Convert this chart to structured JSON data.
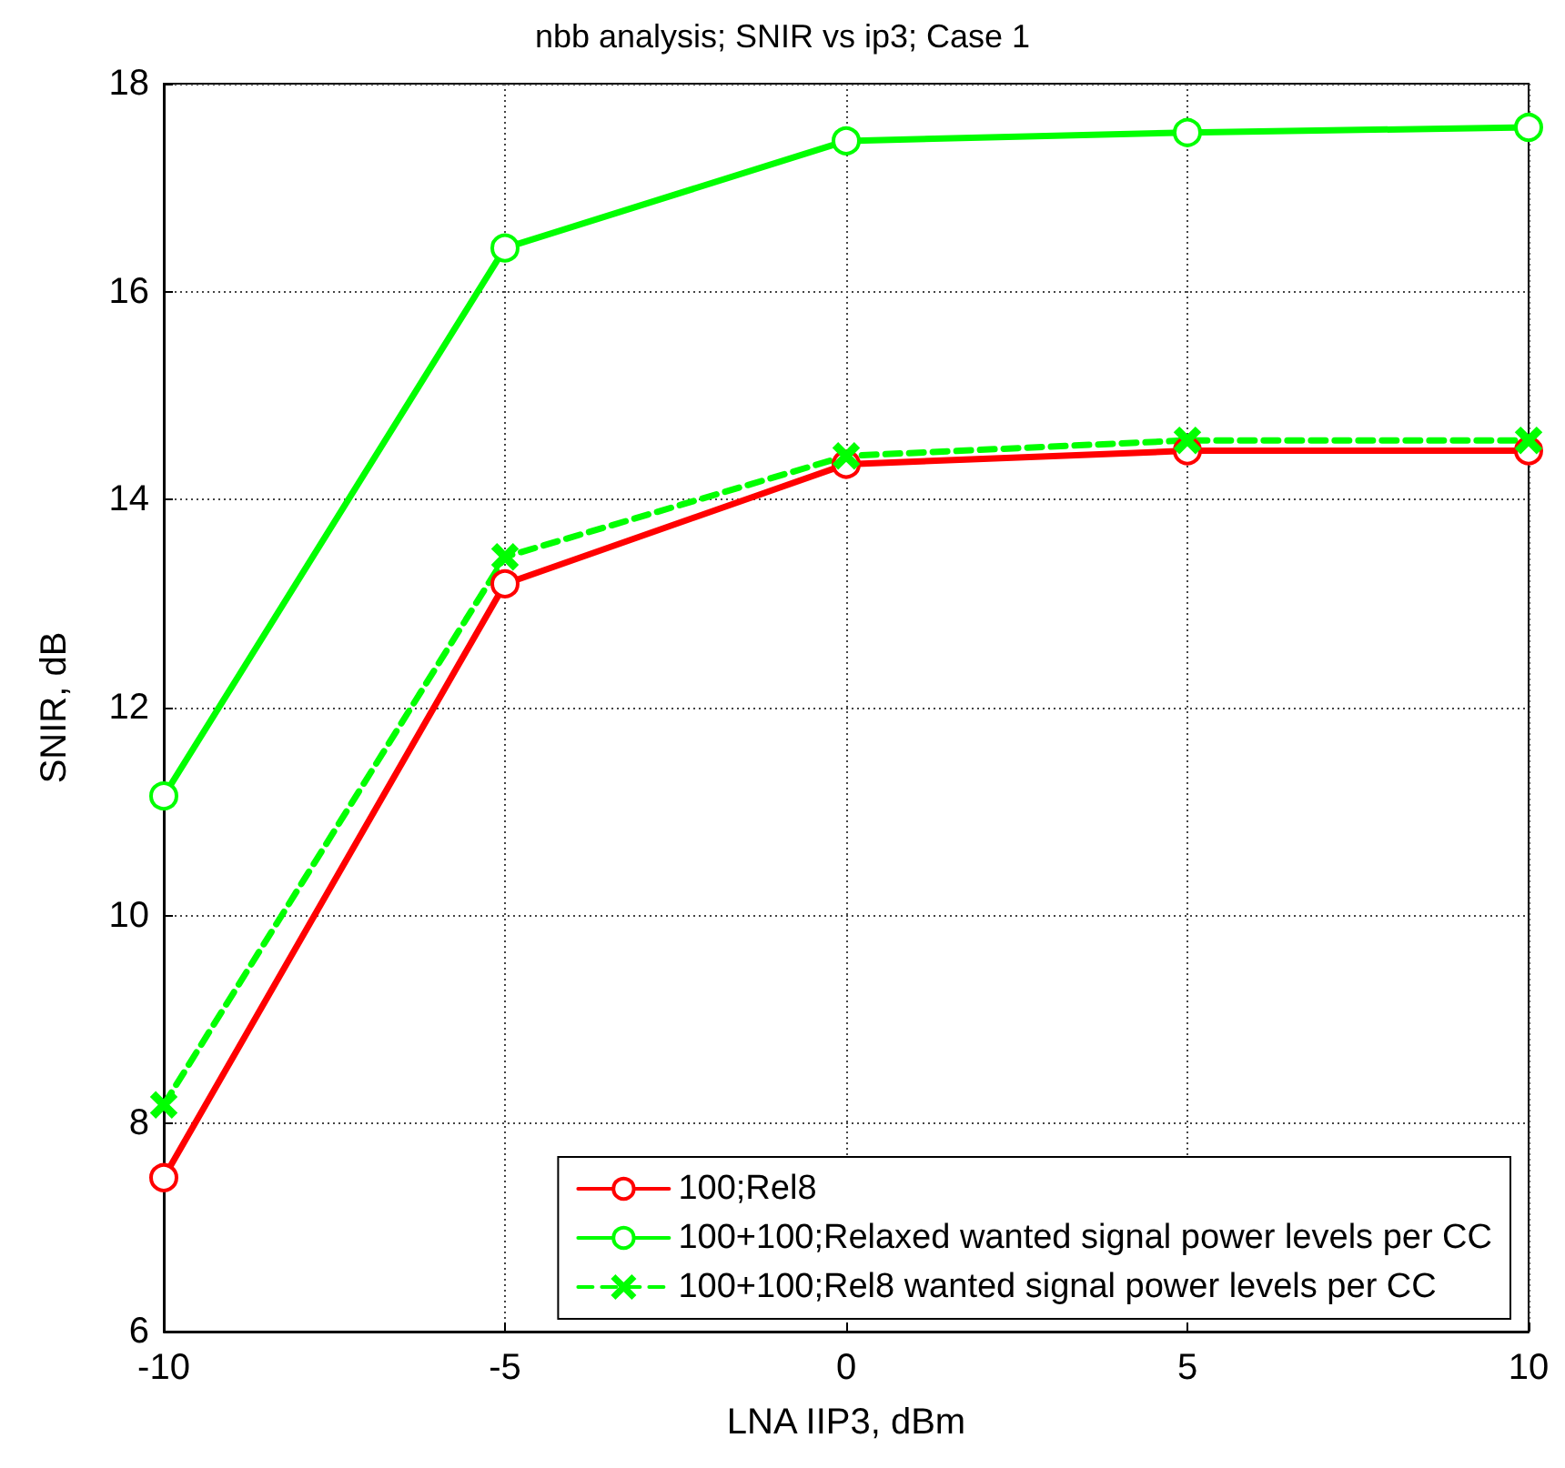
{
  "chart_data": {
    "type": "line",
    "title": "nbb analysis; SNIR vs ip3; Case 1",
    "xlabel": "LNA IIP3, dBm",
    "ylabel": "SNIR, dB",
    "x": [
      -10,
      -5,
      0,
      5,
      10
    ],
    "series": [
      {
        "name": "100;Rel8",
        "color": "#ff0000",
        "marker": "circle",
        "line_style": "solid",
        "values": [
          7.48,
          13.19,
          14.34,
          14.47,
          14.47
        ]
      },
      {
        "name": "100+100;Relaxed wanted signal power levels per CC",
        "color": "#00ff00",
        "marker": "circle",
        "line_style": "solid",
        "values": [
          11.15,
          16.42,
          17.45,
          17.53,
          17.58
        ]
      },
      {
        "name": "100+100;Rel8 wanted signal power levels per CC",
        "color": "#00ff00",
        "marker": "cross",
        "line_style": "dashed",
        "values": [
          8.18,
          13.45,
          14.42,
          14.57,
          14.57
        ]
      }
    ],
    "xlim": [
      -10,
      10
    ],
    "xticks": [
      -10,
      -5,
      0,
      5,
      10
    ],
    "ylim": [
      6,
      18
    ],
    "yticks": [
      6,
      8,
      10,
      12,
      14,
      16,
      18
    ],
    "grid": true,
    "legend": "bottom right"
  }
}
